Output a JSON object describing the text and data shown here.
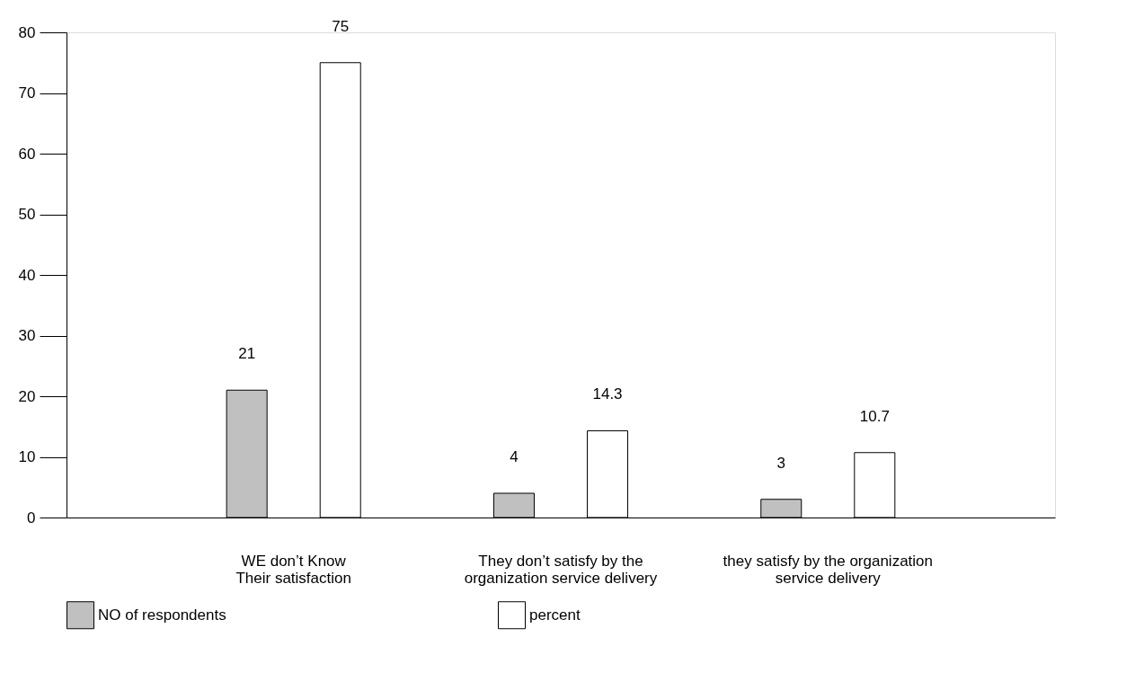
{
  "chart_data": {
    "type": "bar",
    "categories": [
      "WE don’t Know\nTheir satisfaction",
      "They don’t satisfy by the\norganization service delivery",
      "they satisfy by the organization\nservice delivery"
    ],
    "series": [
      {
        "name": "NO of respondents",
        "color": "#c0c0c0",
        "values": [
          21,
          4,
          3
        ]
      },
      {
        "name": "percent",
        "color": "#ffffff",
        "values": [
          75,
          14.3,
          10.7
        ]
      }
    ],
    "ylim": [
      0,
      80
    ],
    "yticks": [
      0,
      10,
      20,
      30,
      40,
      50,
      60,
      70,
      80
    ],
    "data_labels": true,
    "grid": false,
    "legend": "bottom"
  }
}
